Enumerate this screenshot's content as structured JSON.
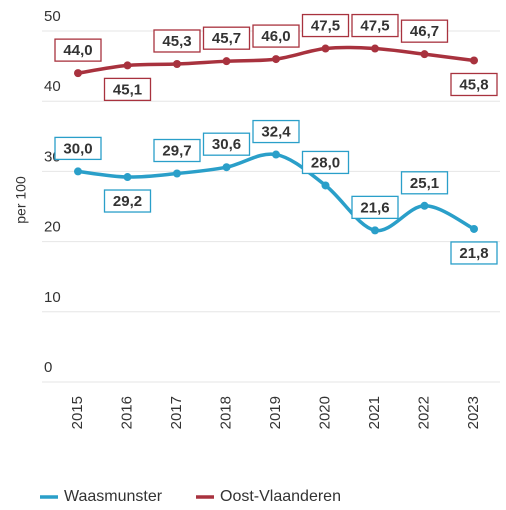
{
  "chart_data": {
    "type": "line",
    "y_label": "per 100",
    "categories": [
      "2015",
      "2016",
      "2017",
      "2018",
      "2019",
      "2020",
      "2021",
      "2022",
      "2023"
    ],
    "series": [
      {
        "name": "Waasmunster",
        "color": "#2a9fc9",
        "values": [
          30.0,
          29.2,
          29.7,
          30.6,
          32.4,
          28.0,
          21.6,
          25.1,
          21.8
        ],
        "value_labels": [
          "30,0",
          "29,2",
          "29,7",
          "30,6",
          "32,4",
          "28,0",
          "21,6",
          "25,1",
          "21,8"
        ]
      },
      {
        "name": "Oost-Vlaanderen",
        "color": "#a8323e",
        "values": [
          44.0,
          45.1,
          45.3,
          45.7,
          46.0,
          47.5,
          47.5,
          46.7,
          45.8
        ],
        "value_labels": [
          "44,0",
          "45,1",
          "45,3",
          "45,7",
          "46,0",
          "47,5",
          "47,5",
          "46,7",
          "45,8"
        ]
      }
    ],
    "ylim": [
      0,
      50
    ],
    "yticks": [
      0,
      10,
      20,
      30,
      40,
      50
    ],
    "grid": true,
    "legend": "bottom"
  }
}
